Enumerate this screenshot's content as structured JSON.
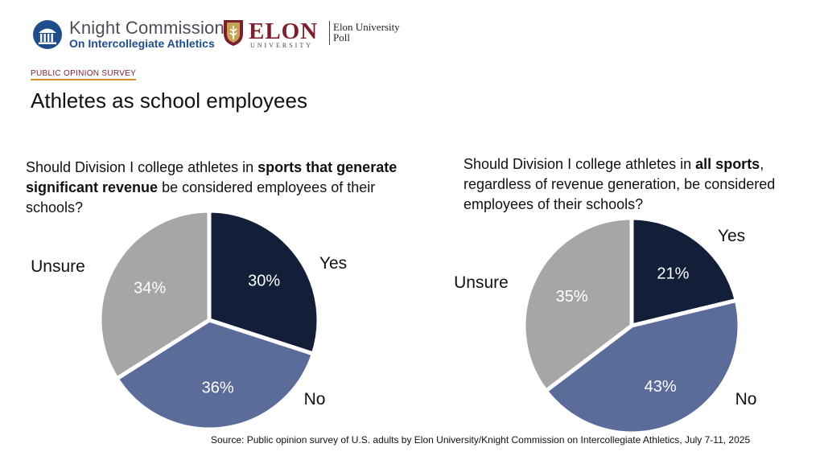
{
  "header": {
    "knight_logo": {
      "line1": "Knight Commission",
      "line2": "On Intercollegiate Athletics"
    },
    "elon_logo": {
      "word": "ELON",
      "sub": "UNIVERSITY",
      "poll_line1": "Elon University",
      "poll_line2": "Poll"
    },
    "survey_label": "PUBLIC OPINION SURVEY",
    "title": "Athletes as school employees"
  },
  "questions": {
    "q1": {
      "pre": "Should Division I college athletes in ",
      "bold": "sports that generate significant revenue",
      "post": " be considered employees of their schools?"
    },
    "q2": {
      "pre": "Should Division I college athletes in ",
      "bold": "all sports",
      "post": ", regardless of revenue generation, be considered employees of their schools?"
    }
  },
  "chart_data": [
    {
      "type": "pie",
      "labels": [
        "Yes",
        "No",
        "Unsure"
      ],
      "values": [
        30,
        36,
        34
      ],
      "value_labels": [
        "30%",
        "36%",
        "34%"
      ],
      "colors": [
        "#131f38",
        "#5b6b9a",
        "#a6a6a6"
      ]
    },
    {
      "type": "pie",
      "labels": [
        "Yes",
        "No",
        "Unsure"
      ],
      "values": [
        21,
        43,
        35
      ],
      "value_labels": [
        "21%",
        "43%",
        "35%"
      ],
      "colors": [
        "#131f38",
        "#5b6b9a",
        "#a6a6a6"
      ]
    }
  ],
  "source": "Source: Public opinion survey of U.S. adults by Elon University/Knight Commission on Intercollegiate Athletics, July 7-11, 2025"
}
